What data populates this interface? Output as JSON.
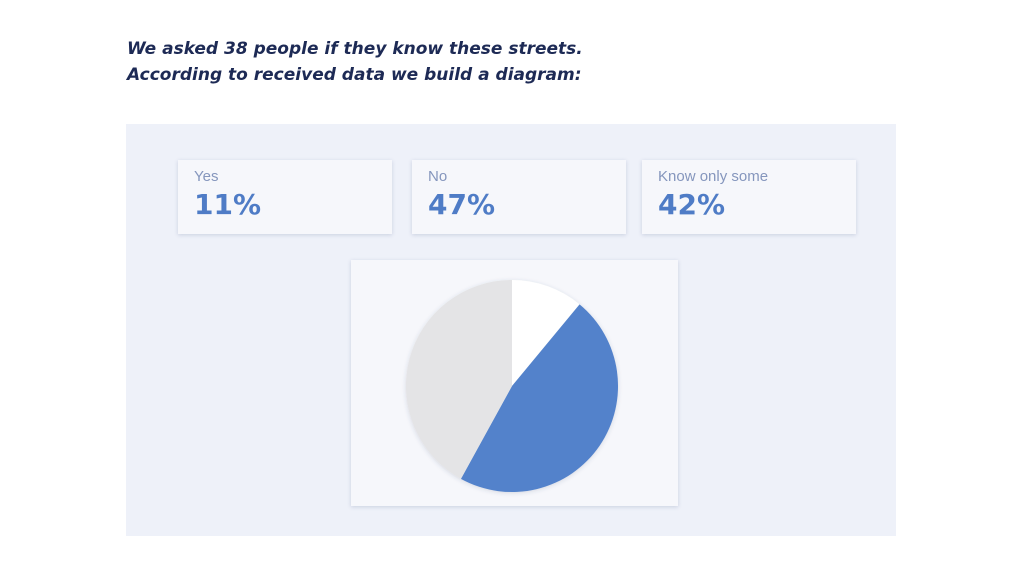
{
  "intro": {
    "line1": "We asked 38 people if they know these streets.",
    "line2": "According to received data we build a diagram:"
  },
  "stats": [
    {
      "label": "Yes",
      "value": "11%"
    },
    {
      "label": "No",
      "value": "47%"
    },
    {
      "label": "Know only some",
      "value": "42%"
    }
  ],
  "colors": {
    "yes": "#ffffff",
    "no": "#5282cb",
    "some": "#e4e4e6",
    "accent": "#4f7cc6",
    "title": "#1d2a55"
  },
  "chart_data": {
    "type": "pie",
    "categories": [
      "Yes",
      "No",
      "Know only some"
    ],
    "values": [
      11,
      47,
      42
    ],
    "start": "top (12 o'clock)",
    "direction": "clockwise",
    "title": "",
    "legend": "none"
  }
}
